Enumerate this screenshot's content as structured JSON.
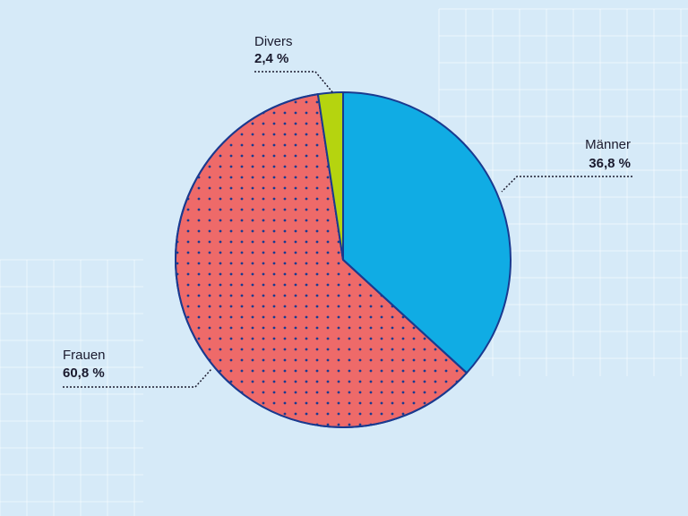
{
  "chart_data": {
    "type": "pie",
    "slices": [
      {
        "label": "Männer",
        "value_text": "36,8 %",
        "value": 36.8,
        "color": "#10ace4",
        "pattern": "none"
      },
      {
        "label": "Frauen",
        "value_text": "60,8 %",
        "value": 60.8,
        "color": "#ee6a69",
        "pattern": "dots"
      },
      {
        "label": "Divers",
        "value_text": "2,4 %",
        "value": 2.4,
        "color": "#b5d40f",
        "pattern": "none"
      }
    ],
    "start_angle": "12 o'clock",
    "direction": "clockwise",
    "outline_color": "#1a3a8f",
    "background": "#d6eaf8",
    "grid_decoration": true
  }
}
